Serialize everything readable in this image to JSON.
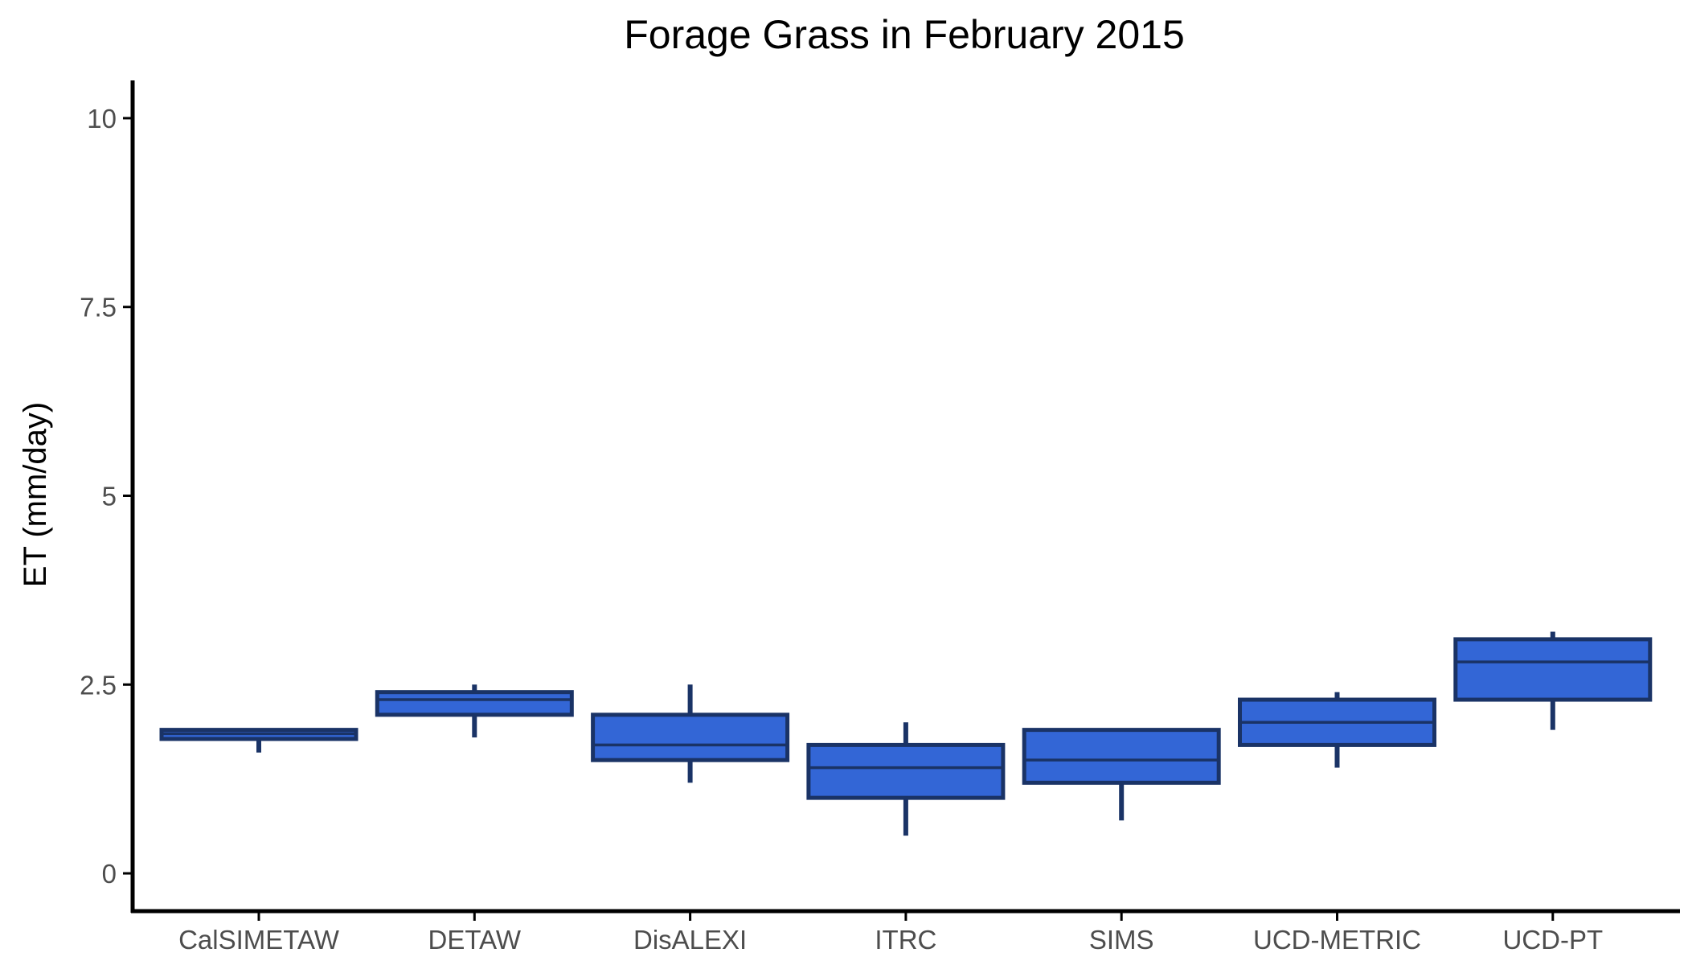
{
  "chart_data": {
    "type": "box",
    "title": "Forage Grass in February 2015",
    "xlabel": "",
    "ylabel": "ET (mm/day)",
    "ylim": [
      -0.5,
      10.5
    ],
    "yticks": [
      0,
      2.5,
      5,
      7.5,
      10
    ],
    "ytick_labels": [
      "0",
      "2.5",
      "5",
      "7.5",
      "10"
    ],
    "grid": false,
    "legend": "none",
    "categories": [
      "CalSIMETAW",
      "DETAW",
      "DisALEXI",
      "ITRC",
      "SIMS",
      "UCD-METRIC",
      "UCD-PT"
    ],
    "boxes": [
      {
        "category": "CalSIMETAW",
        "min": 1.6,
        "q1": 1.78,
        "median": 1.85,
        "q3": 1.9,
        "max": 1.9
      },
      {
        "category": "DETAW",
        "min": 1.8,
        "q1": 2.1,
        "median": 2.3,
        "q3": 2.4,
        "max": 2.5
      },
      {
        "category": "DisALEXI",
        "min": 1.2,
        "q1": 1.5,
        "median": 1.7,
        "q3": 2.1,
        "max": 2.5
      },
      {
        "category": "ITRC",
        "min": 0.5,
        "q1": 1.0,
        "median": 1.4,
        "q3": 1.7,
        "max": 2.0
      },
      {
        "category": "SIMS",
        "min": 0.7,
        "q1": 1.2,
        "median": 1.5,
        "q3": 1.9,
        "max": 1.9
      },
      {
        "category": "UCD-METRIC",
        "min": 1.4,
        "q1": 1.7,
        "median": 2.0,
        "q3": 2.3,
        "max": 2.4
      },
      {
        "category": "UCD-PT",
        "min": 1.9,
        "q1": 2.3,
        "median": 2.8,
        "q3": 3.1,
        "max": 3.2
      }
    ],
    "colors": {
      "box_fill": "#3366d6",
      "box_outline": "#1a3366",
      "axis": "#000000",
      "tick_text": "#4d4d4d"
    }
  }
}
